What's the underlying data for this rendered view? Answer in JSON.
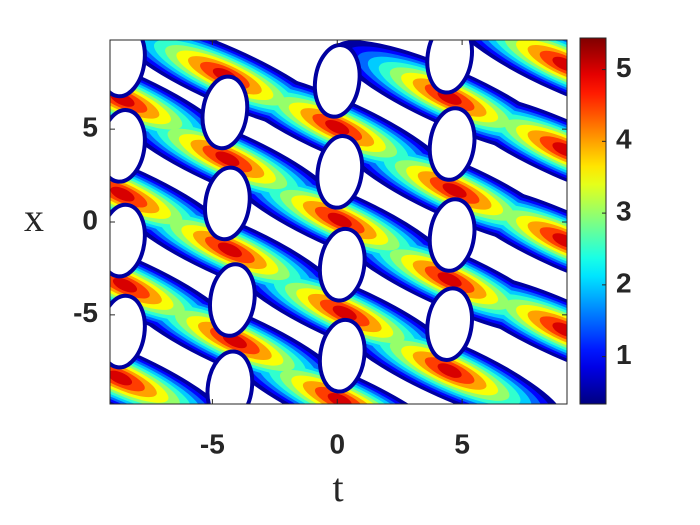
{
  "chart_data": {
    "type": "contour",
    "xlabel": "t",
    "ylabel": "x",
    "xlim": [
      -9.1,
      9.2
    ],
    "ylim": [
      -9.8,
      9.8
    ],
    "xticks": [
      -5,
      0,
      5
    ],
    "yticks": [
      -5,
      0,
      5
    ],
    "colormap": "jet",
    "clim": [
      0.34,
      5.44
    ],
    "colorbar_ticks": [
      1,
      2,
      3,
      4,
      5
    ],
    "levels": [
      0.5,
      1,
      1.5,
      2,
      2.5,
      3,
      3.5,
      4,
      4.5,
      5
    ],
    "peaks": [
      {
        "t": -4.5,
        "x": 7.9,
        "z": 5.4
      },
      {
        "t": -4.4,
        "x": 3.4,
        "z": 5.4
      },
      {
        "t": -4.3,
        "x": -1.5,
        "z": 5.4
      },
      {
        "t": -4.1,
        "x": -6.4,
        "z": 5.4
      },
      {
        "t": 0,
        "x": 5.1,
        "z": 5.4
      },
      {
        "t": 0.1,
        "x": 0.1,
        "z": 5.4
      },
      {
        "t": 0.3,
        "x": -4.9,
        "z": 5.4
      },
      {
        "t": 0.1,
        "x": -9.6,
        "z": 5.4
      },
      {
        "t": 4.5,
        "x": 6.7,
        "z": 5.4
      },
      {
        "t": 4.7,
        "x": 1.7,
        "z": 5.4
      },
      {
        "t": 4.5,
        "x": -3.1,
        "z": 5.4
      },
      {
        "t": 4.5,
        "x": -8,
        "z": 5.4
      },
      {
        "t": -8.6,
        "x": 6.6,
        "z": 5.4
      },
      {
        "t": -8.6,
        "x": 1.5,
        "z": 5.4
      },
      {
        "t": -8.5,
        "x": -3.4,
        "z": 5.4
      },
      {
        "t": -8.7,
        "x": -8.4,
        "z": 5.4
      },
      {
        "t": 9.1,
        "x": 8.5,
        "z": 5.4
      },
      {
        "t": 9.1,
        "x": 3.9,
        "z": 5.4
      },
      {
        "t": 9.1,
        "x": -1,
        "z": 5.4
      },
      {
        "t": 9.1,
        "x": -5.8,
        "z": 5.4
      }
    ],
    "loops": [
      {
        "t": -4.5,
        "x": 5.9,
        "z": 0.5
      },
      {
        "t": -4.4,
        "x": 1.0,
        "z": 0.5
      },
      {
        "t": -4.2,
        "x": -4.2,
        "z": 0.5
      },
      {
        "t": -4.3,
        "x": -8.9,
        "z": 0.5
      },
      {
        "t": 0,
        "x": 7.6,
        "z": 0.5
      },
      {
        "t": 0.1,
        "x": 2.7,
        "z": 0.5
      },
      {
        "t": 0.2,
        "x": -2.3,
        "z": 0.5
      },
      {
        "t": 0.2,
        "x": -7.2,
        "z": 0.5
      },
      {
        "t": 4.5,
        "x": 8.9,
        "z": 0.5
      },
      {
        "t": 4.6,
        "x": 4.2,
        "z": 0.5
      },
      {
        "t": 4.6,
        "x": -0.7,
        "z": 0.5
      },
      {
        "t": 4.5,
        "x": -5.5,
        "z": 0.5
      },
      {
        "t": -8.6,
        "x": 8.7,
        "z": 0.5
      },
      {
        "t": -8.6,
        "x": 4.1,
        "z": 0.5
      },
      {
        "t": -8.6,
        "x": -1.0,
        "z": 0.5
      },
      {
        "t": -8.6,
        "x": -5.9,
        "z": 0.5
      }
    ]
  }
}
